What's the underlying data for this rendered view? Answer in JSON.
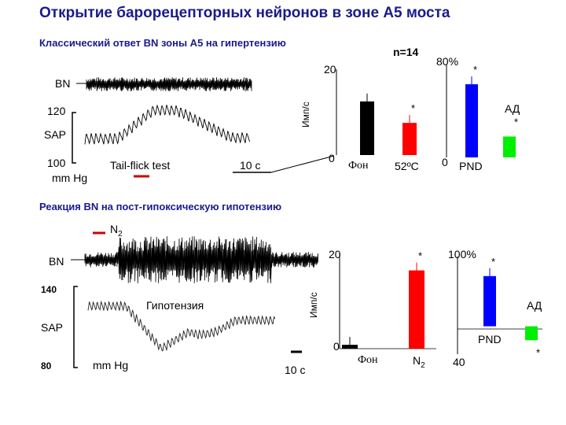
{
  "title": "Открытие барорецепторных нейронов в зоне А5 моста",
  "panel1": {
    "subtitle": "Классический ответ BN  зоны А5 на гипертензию",
    "n_label": "n=14",
    "bn_label": "BN",
    "sap_label": "SAP",
    "sap_high": "120",
    "sap_low": "100",
    "units": "mm Hg",
    "stimulus": "Tail-flick test",
    "time_scale": "10 c",
    "imp_axis_label": "Имп/с",
    "imp_max": "20",
    "imp_zero": "0",
    "cat_bg": "Фон",
    "cat_temp": "52ºC",
    "pct_max": "80%",
    "pct_zero": "0",
    "cat_pnd": "PND",
    "ad_label": "АД",
    "star": "*"
  },
  "panel2": {
    "subtitle": "Реакция BN на пост-гипоксическую гипотензию",
    "n2_label": "N",
    "n2_sub": "2",
    "bn_label": "BN",
    "sap_label": "SAP",
    "sap_high": "140",
    "sap_low": "80",
    "units": "mm Hg",
    "event": "Гипотензия",
    "time_scale": "10 c",
    "imp_axis_label": "Имп/с",
    "imp_max": "20",
    "imp_zero": "0",
    "cat_bg": "Фон",
    "cat_n2": "N",
    "cat_n2_sub": "2",
    "pct_max": "100%",
    "pct_min": "40",
    "cat_pnd": "PND",
    "ad_label": "АД",
    "star": "*"
  },
  "chart_data": [
    {
      "type": "bar",
      "categories": [
        "Фон",
        "52ºC"
      ],
      "values": [
        12.5,
        7.5
      ],
      "ylabel": "Имп/с",
      "ylim": [
        0,
        20
      ],
      "colors": [
        "#000000",
        "#ff0000"
      ]
    },
    {
      "type": "bar",
      "categories": [
        "PND",
        "АД"
      ],
      "values": [
        63,
        18
      ],
      "ylim": [
        0,
        80
      ],
      "colors": [
        "#0000ff",
        "#00ee00"
      ]
    },
    {
      "type": "bar",
      "categories": [
        "Фон",
        "N2"
      ],
      "values": [
        0.8,
        16.3
      ],
      "ylabel": "Имп/с",
      "ylim": [
        0,
        20
      ],
      "colors": [
        "#000000",
        "#ff0000"
      ]
    },
    {
      "type": "bar",
      "categories": [
        "PND",
        "АД"
      ],
      "values": [
        72,
        -20
      ],
      "ylim": [
        -40,
        100
      ],
      "colors": [
        "#0000ff",
        "#00ee00"
      ]
    }
  ],
  "colors": {
    "title": "#1a1a8c",
    "marker_red": "#cc0000"
  }
}
